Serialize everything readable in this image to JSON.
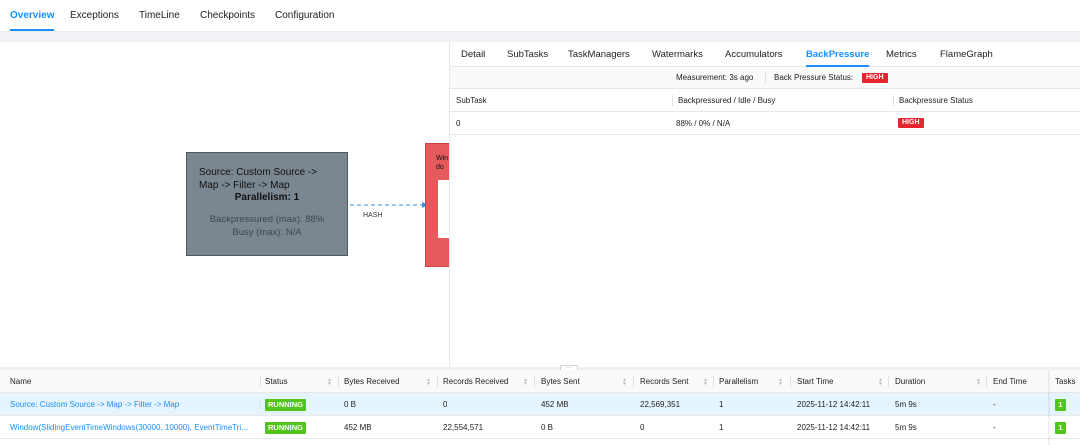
{
  "top_tabs": [
    {
      "label": "Overview",
      "active": true
    },
    {
      "label": "Exceptions",
      "active": false
    },
    {
      "label": "TimeLine",
      "active": false
    },
    {
      "label": "Checkpoints",
      "active": false
    },
    {
      "label": "Configuration",
      "active": false
    }
  ],
  "graph": {
    "source_node": {
      "title": "Source: Custom Source -> Map -> Filter -> Map",
      "parallelism": "Parallelism: 1",
      "backpressured": "Backpressured (max): 88%",
      "busy": "Busy (max): N/A"
    },
    "edge_label": "HASH",
    "window_node": {
      "title_fragment": "Win",
      "line2": "do"
    }
  },
  "panel": {
    "tabs": [
      {
        "label": "Detail",
        "active": false
      },
      {
        "label": "SubTasks",
        "active": false
      },
      {
        "label": "TaskManagers",
        "active": false
      },
      {
        "label": "Watermarks",
        "active": false
      },
      {
        "label": "Accumulators",
        "active": false
      },
      {
        "label": "BackPressure",
        "active": true
      },
      {
        "label": "Metrics",
        "active": false
      },
      {
        "label": "FlameGraph",
        "active": false
      }
    ],
    "measurement": "Measurement: 3s ago",
    "status_label": "Back Pressure Status:",
    "status_value": "HIGH",
    "columns": [
      "SubTask",
      "Backpressured / Idle / Busy",
      "Backpressure Status"
    ],
    "rows": [
      {
        "subtask": "0",
        "ratio": "88% / 0% / N/A",
        "status": "HIGH"
      }
    ]
  },
  "table": {
    "columns": [
      "Name",
      "Status",
      "Bytes Received",
      "Records Received",
      "Bytes Sent",
      "Records Sent",
      "Parallelism",
      "Start Time",
      "Duration",
      "End Time",
      "Tasks"
    ],
    "rows": [
      {
        "name": "Source: Custom Source -> Map -> Filter -> Map",
        "status": "RUNNING",
        "bytes_received": "0 B",
        "records_received": "0",
        "bytes_sent": "452 MB",
        "records_sent": "22,569,351",
        "parallelism": "1",
        "start_time": "2025-11-12 14:42:11",
        "duration": "5m 9s",
        "end_time": "-",
        "tasks": "1"
      },
      {
        "name": "Window(SlidingEventTimeWindows(30000, 10000), EventTimeTri...",
        "status": "RUNNING",
        "bytes_received": "452 MB",
        "records_received": "22,554,571",
        "bytes_sent": "0 B",
        "records_sent": "0",
        "parallelism": "1",
        "start_time": "2025-11-12 14:42:11",
        "duration": "5m 9s",
        "end_time": "-",
        "tasks": "1"
      }
    ]
  },
  "colors": {
    "accent": "#1890ff",
    "running": "#52c41a",
    "high": "#e8242e",
    "source_node": "#7b8790",
    "window_node": "#e55b5b"
  }
}
